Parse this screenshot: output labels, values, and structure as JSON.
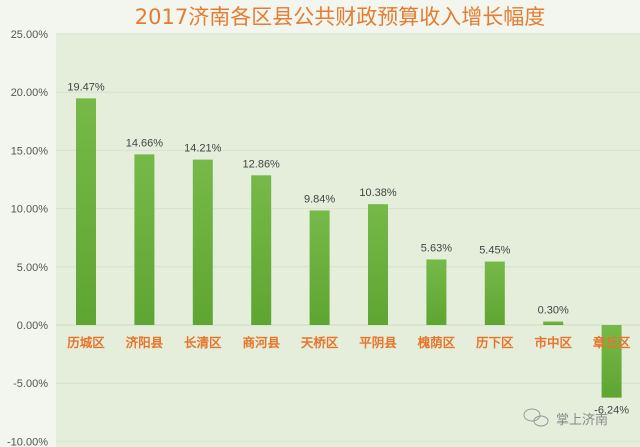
{
  "chart_data": {
    "type": "bar",
    "title": "2017济南各区县公共财政预算收入增长幅度",
    "categories": [
      "历城区",
      "济阳县",
      "长清区",
      "商河县",
      "天桥区",
      "平阴县",
      "槐荫区",
      "历下区",
      "市中区",
      "章丘区"
    ],
    "values": [
      19.47,
      14.66,
      14.21,
      12.86,
      9.84,
      10.38,
      5.63,
      5.45,
      0.3,
      -6.24
    ],
    "data_labels": [
      "19.47%",
      "14.66%",
      "14.21%",
      "12.86%",
      "9.84%",
      "10.38%",
      "5.63%",
      "5.45%",
      "0.30%",
      "-6.24%"
    ],
    "ylim": [
      -10,
      25
    ],
    "yticks": [
      "25.00%",
      "20.00%",
      "15.00%",
      "10.00%",
      "5.00%",
      "0.00%",
      "-5.00%",
      "-10.00%"
    ],
    "ytick_values": [
      25,
      20,
      15,
      10,
      5,
      0,
      -5,
      -10
    ],
    "xlabel": "",
    "ylabel": "",
    "grid": true,
    "legend": "none",
    "colors": {
      "bar": "#6db33f",
      "title": "#e47d33",
      "category": "#e8742a",
      "plot_bg": "#e4eedb"
    }
  },
  "watermark": "掌上济南"
}
